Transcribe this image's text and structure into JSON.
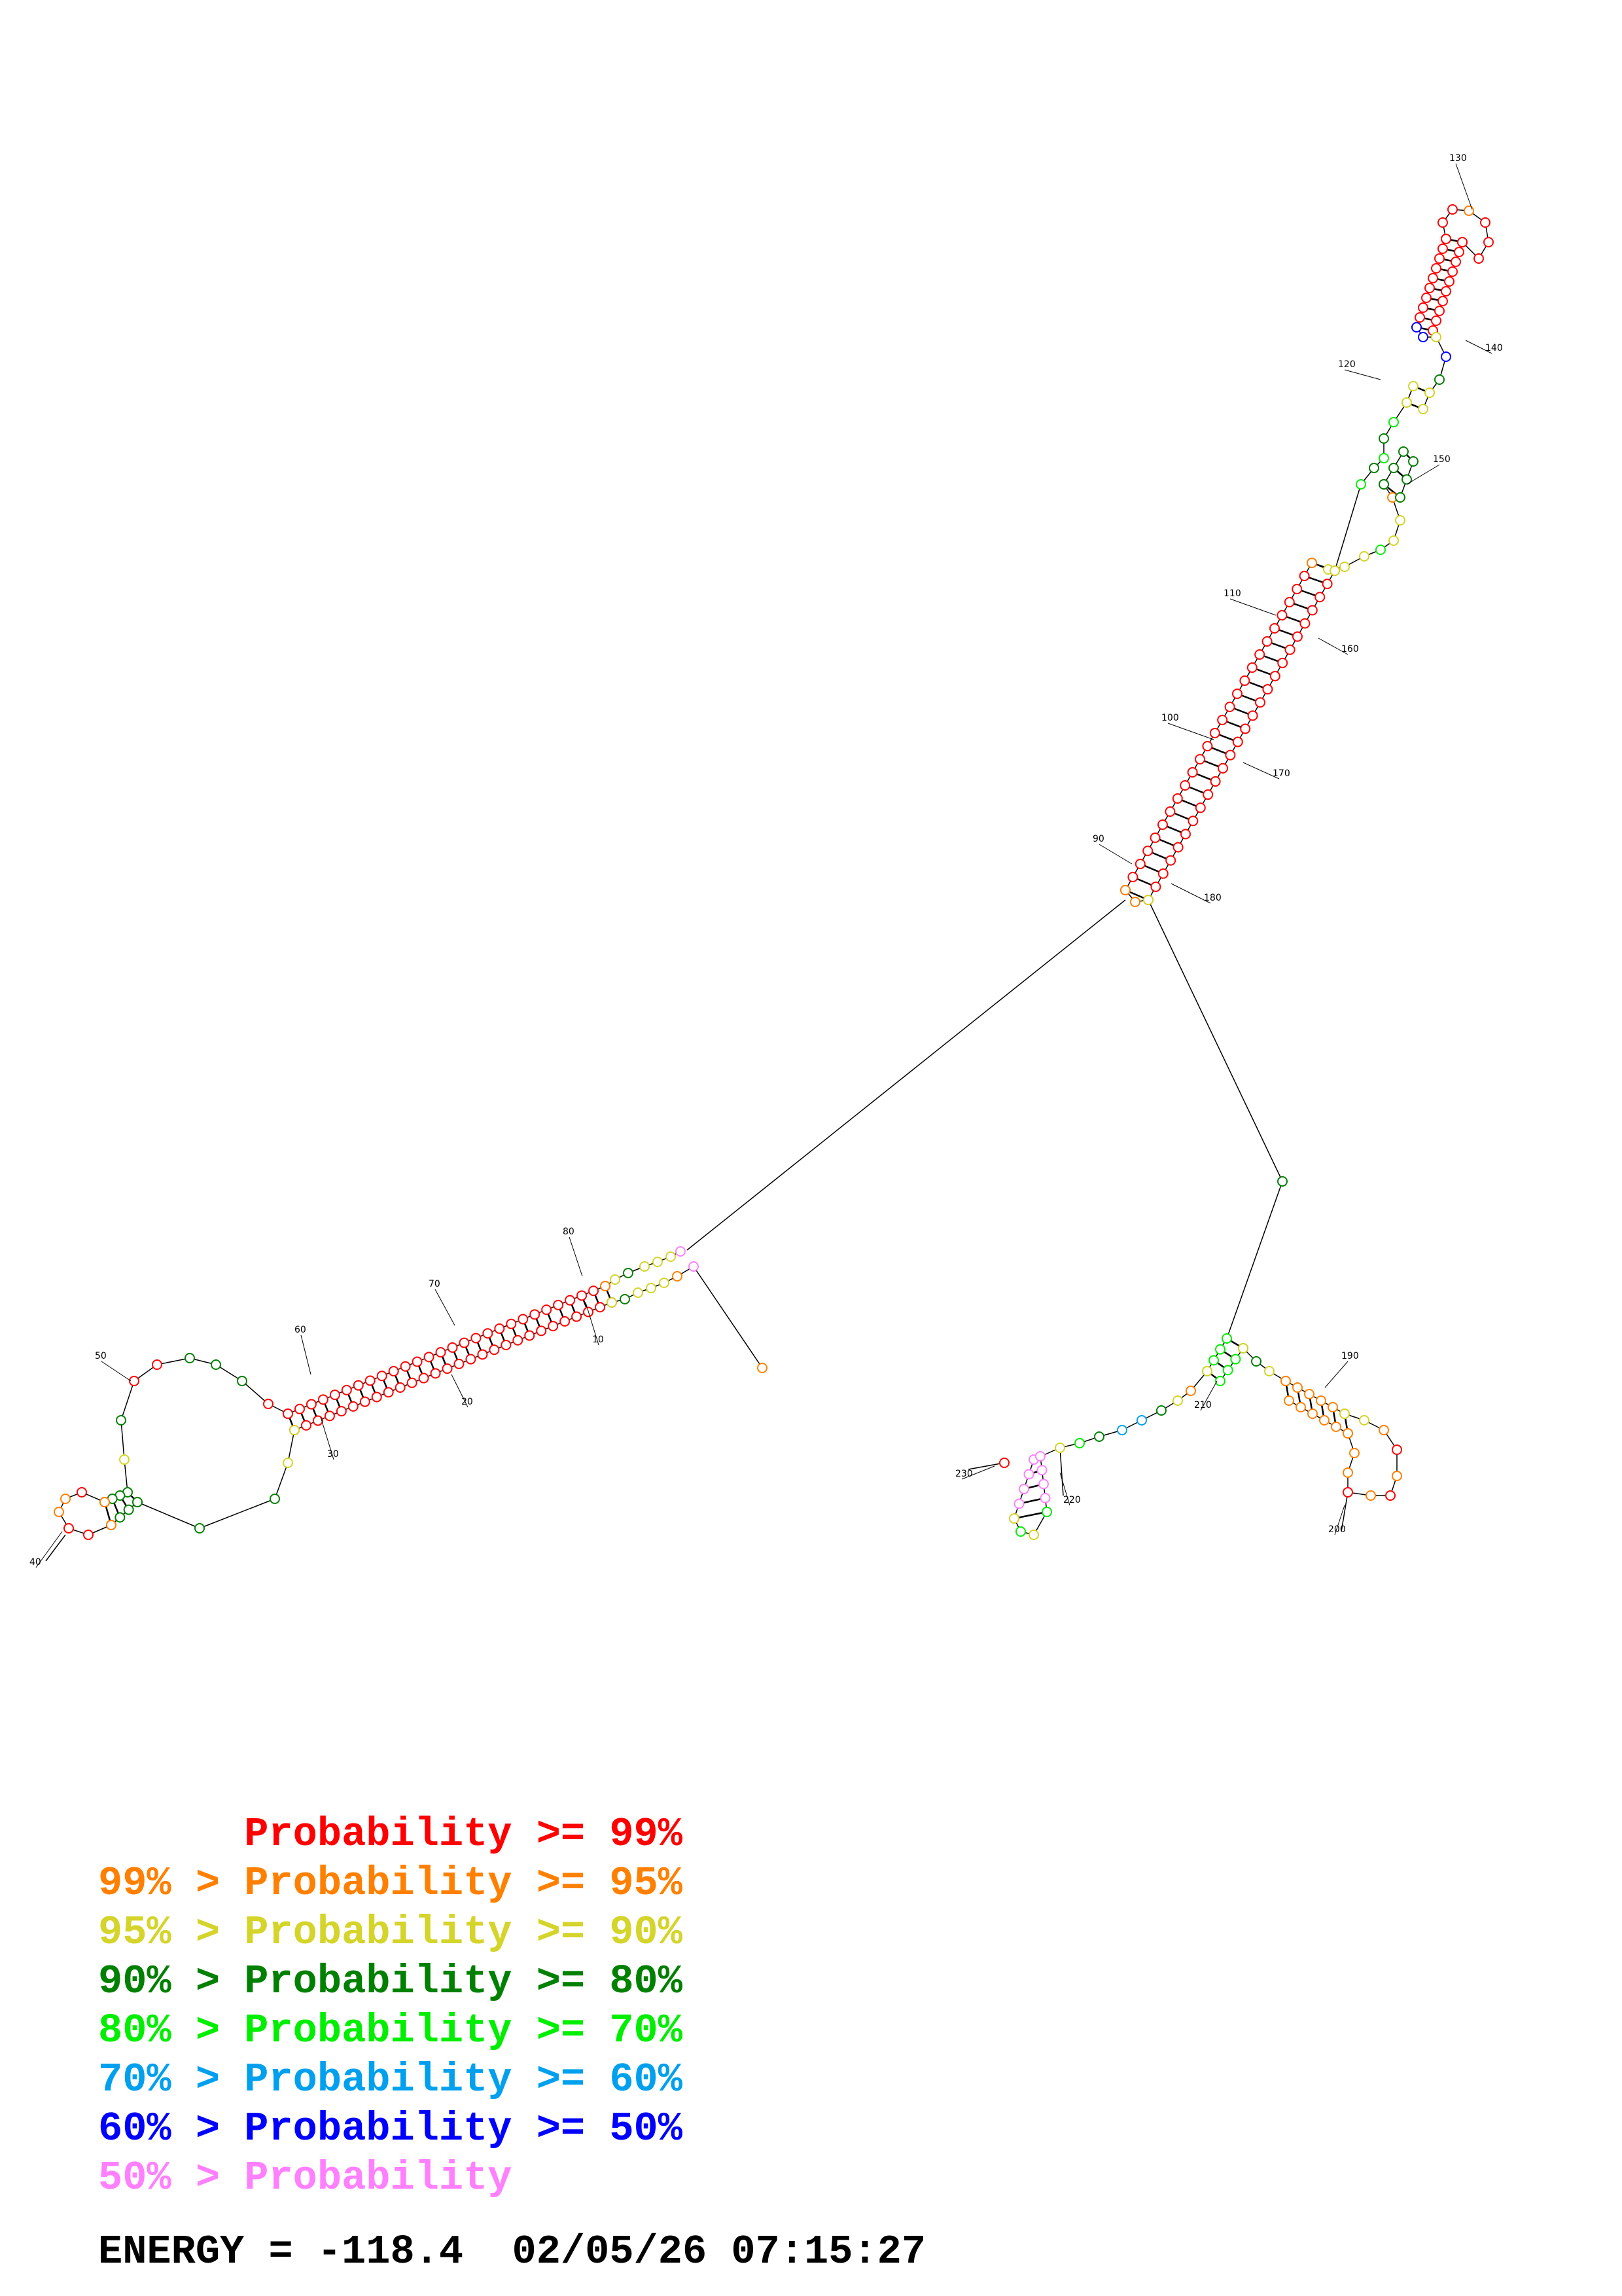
{
  "legend": {
    "levels": [
      {
        "prefix": "    ",
        "label": "Probability >= 99%",
        "color": "#ff0000"
      },
      {
        "prefix": "99% > ",
        "label": "Probability >= 95%",
        "color": "#ff8000"
      },
      {
        "prefix": "95% > ",
        "label": "Probability >= 90%",
        "color": "#d4d42a"
      },
      {
        "prefix": "90% > ",
        "label": "Probability >= 80%",
        "color": "#008000"
      },
      {
        "prefix": "80% > ",
        "label": "Probability >= 70%",
        "color": "#00ee00"
      },
      {
        "prefix": "70% > ",
        "label": "Probability >= 60%",
        "color": "#00a0ee"
      },
      {
        "prefix": "60% > ",
        "label": "Probability >= 50%",
        "color": "#0000ff"
      },
      {
        "prefix": "50% > ",
        "label": "Probability",
        "color": "#ff80ff"
      }
    ]
  },
  "footer": {
    "energy": "ENERGY = -118.4",
    "timestamp": "02/05/26 07:15:27"
  },
  "structure": {
    "position_labels": [
      "10",
      "20",
      "30",
      "40",
      "50",
      "60",
      "70",
      "80",
      "90",
      "100",
      "110",
      "120",
      "130",
      "140",
      "150",
      "160",
      "170",
      "180",
      "190",
      "200",
      "210",
      "220",
      "230"
    ]
  }
}
